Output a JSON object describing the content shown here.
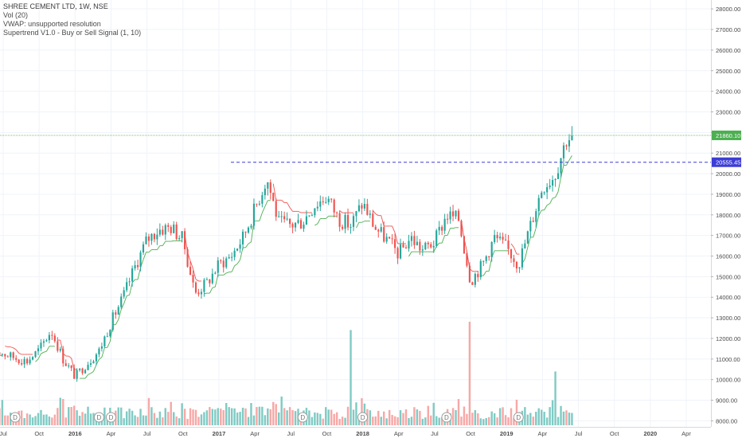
{
  "legend": {
    "title": "SHREE CEMENT LTD, 1W, NSE",
    "vol": "Vol (20)",
    "vwap": "VWAP: unsupported resolution",
    "supertrend": "Supertrend V1.0 - Buy or Sell Signal (1, 10)"
  },
  "colors": {
    "up": "#26a69a",
    "down": "#ef5350",
    "vol_up": "#80cbc4",
    "vol_down": "#f7a8a6",
    "supertrend_up": "#4caf50",
    "supertrend_down": "#ef5350",
    "last_price": "#4caf50",
    "level_line": "#3d3dd6",
    "grid": "#f0f3fa",
    "axis_text": "#4a4a4a"
  },
  "chart_data": {
    "type": "candlestick",
    "title": "SHREE CEMENT LTD, 1W, NSE",
    "interval": "1W",
    "exchange": "NSE",
    "x_tick_labels": [
      "Jul",
      "Oct",
      "2016",
      "Apr",
      "Jul",
      "Oct",
      "2017",
      "Apr",
      "Jul",
      "Oct",
      "2018",
      "Apr",
      "Jul",
      "Oct",
      "2019",
      "Apr",
      "Jul",
      "Oct",
      "2020",
      "Apr"
    ],
    "x_tick_dates": [
      "2015-07",
      "2015-10",
      "2016-01",
      "2016-04",
      "2016-07",
      "2016-10",
      "2017-01",
      "2017-04",
      "2017-07",
      "2017-10",
      "2018-01",
      "2018-04",
      "2018-07",
      "2018-10",
      "2019-01",
      "2019-04",
      "2019-07",
      "2019-10",
      "2020-01",
      "2020-04"
    ],
    "y_tick_labels": [
      "8000.00",
      "9000.00",
      "10000.00",
      "11000.00",
      "12000.00",
      "13000.00",
      "14000.00",
      "15000.00",
      "16000.00",
      "17000.00",
      "18000.00",
      "19000.00",
      "20000.00",
      "21000.00",
      "22000.00",
      "23000.00",
      "24000.00",
      "25000.00",
      "26000.00",
      "27000.00",
      "28000.00"
    ],
    "y_range": [
      7900,
      28200
    ],
    "last_price_label": "21860.10",
    "last_price": 21860.1,
    "level_label": "20555.45",
    "level": 20555.45,
    "level_start": "2017-02",
    "close_path": [
      [
        "2015-06",
        11500
      ],
      [
        "2015-08",
        11050
      ],
      [
        "2015-09",
        10900
      ],
      [
        "2015-10",
        11450
      ],
      [
        "2015-11",
        12400
      ],
      [
        "2015-12",
        11000
      ],
      [
        "2016-01",
        10150
      ],
      [
        "2016-02",
        10800
      ],
      [
        "2016-03",
        11400
      ],
      [
        "2016-04",
        12800
      ],
      [
        "2016-05",
        14000
      ],
      [
        "2016-06",
        15500
      ],
      [
        "2016-07",
        16800
      ],
      [
        "2016-08",
        17300
      ],
      [
        "2016-09",
        17400
      ],
      [
        "2016-10",
        16800
      ],
      [
        "2016-11",
        14200
      ],
      [
        "2016-12",
        14700
      ],
      [
        "2017-01",
        15600
      ],
      [
        "2017-02",
        16000
      ],
      [
        "2017-03",
        16900
      ],
      [
        "2017-04",
        18300
      ],
      [
        "2017-05",
        19800
      ],
      [
        "2017-06",
        17600
      ],
      [
        "2017-07",
        17500
      ],
      [
        "2017-08",
        17700
      ],
      [
        "2017-09",
        18500
      ],
      [
        "2017-10",
        18900
      ],
      [
        "2017-11",
        17800
      ],
      [
        "2017-12",
        17500
      ],
      [
        "2018-01",
        18600
      ],
      [
        "2018-02",
        17400
      ],
      [
        "2018-03",
        16800
      ],
      [
        "2018-04",
        16100
      ],
      [
        "2018-05",
        16900
      ],
      [
        "2018-06",
        16300
      ],
      [
        "2018-07",
        16700
      ],
      [
        "2018-08",
        18000
      ],
      [
        "2018-09",
        17800
      ],
      [
        "2018-10",
        14800
      ],
      [
        "2018-11",
        15600
      ],
      [
        "2018-12",
        16900
      ],
      [
        "2019-01",
        16400
      ],
      [
        "2019-02",
        15600
      ],
      [
        "2019-03",
        17500
      ],
      [
        "2019-04",
        19400
      ],
      [
        "2019-05",
        19900
      ],
      [
        "2019-06",
        21700
      ],
      [
        "2019-06-20",
        21860
      ]
    ],
    "volume_spikes": [
      {
        "date": "2017-12",
        "relative": 0.92
      },
      {
        "date": "2018-10",
        "relative": 1.0
      },
      {
        "date": "2019-05",
        "relative": 0.52
      }
    ],
    "dividend_markers": [
      "2015-08",
      "2016-03",
      "2016-04",
      "2017-08",
      "2018-01",
      "2018-08",
      "2019-02"
    ],
    "dividend_label": "D"
  }
}
